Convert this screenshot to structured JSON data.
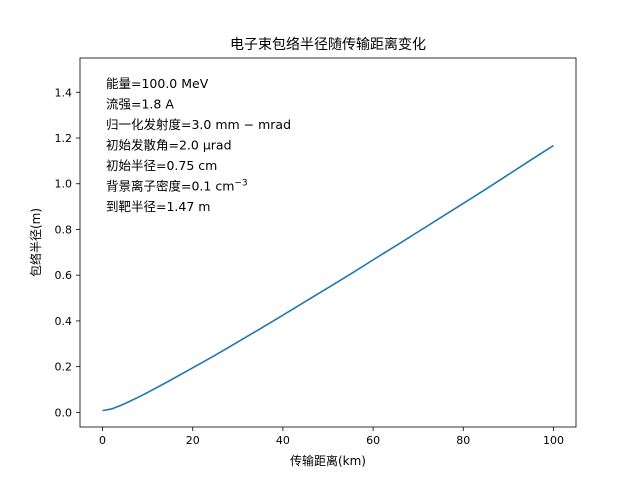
{
  "chart_data": {
    "type": "line",
    "title": "电子束包络半径随传输距离变化",
    "xlabel": "传输距离(km)",
    "ylabel": "包络半径(m)",
    "xlim": [
      -5,
      105
    ],
    "ylim": [
      -0.064,
      1.55
    ],
    "x_ticks": [
      0,
      20,
      40,
      60,
      80,
      100
    ],
    "y_ticks": [
      0.0,
      0.2,
      0.4,
      0.6,
      0.8,
      1.0,
      1.2,
      1.4
    ],
    "x_tick_labels": [
      "0",
      "20",
      "40",
      "60",
      "80",
      "100"
    ],
    "y_tick_labels": [
      "0.0",
      "0.2",
      "0.4",
      "0.6",
      "0.8",
      "1.0",
      "1.2",
      "1.4"
    ],
    "grid": false,
    "series": [
      {
        "color": "#1f77b4",
        "x": [
          0,
          2,
          4,
          6,
          8,
          10,
          15,
          20,
          25,
          30,
          35,
          40,
          45,
          50,
          55,
          60,
          65,
          70,
          75,
          80,
          85,
          90,
          95,
          100
        ],
        "y": [
          0.0075,
          0.015,
          0.03,
          0.048,
          0.067,
          0.087,
          0.14,
          0.195,
          0.25,
          0.308,
          0.366,
          0.425,
          0.485,
          0.545,
          0.605,
          0.667,
          0.728,
          0.79,
          0.852,
          0.914,
          0.976,
          1.04,
          1.104,
          1.167
        ]
      }
    ],
    "annotations": [
      {
        "prefix": "能量=100.0 MeV",
        "sup": ""
      },
      {
        "prefix": "流强=1.8 A",
        "sup": ""
      },
      {
        "prefix": "归一化发射度=3.0 mm − mrad",
        "sup": ""
      },
      {
        "prefix": "初始发散角=2.0 μrad",
        "sup": ""
      },
      {
        "prefix": "初始半径=0.75 cm",
        "sup": ""
      },
      {
        "prefix": "背景离子密度=0.1 cm",
        "sup": "−3"
      },
      {
        "prefix": "到靶半径=1.47 m",
        "sup": ""
      }
    ]
  }
}
